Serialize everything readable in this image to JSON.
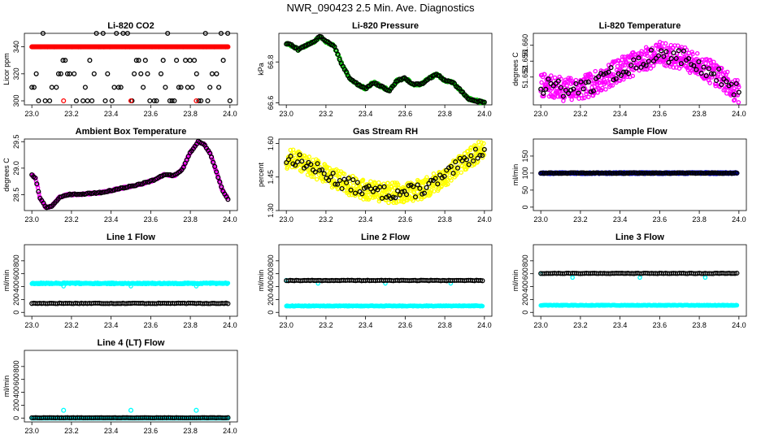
{
  "page": {
    "title": "NWR_090423  2.5 Min. Ave. Diagnostics"
  },
  "colors": {
    "black": "#000000",
    "red": "#ff0000",
    "green": "#00c000",
    "magenta": "#ff00ff",
    "yellow": "#ffff00",
    "blue": "#0000ff",
    "cyan": "#00ffff"
  },
  "chart_data": [
    {
      "id": "li820-co2",
      "type": "scatter",
      "title": "Li-820 CO2",
      "xlabel": "",
      "ylabel": "Licor ppm",
      "xlim": [
        23.0,
        24.0
      ],
      "ylim": [
        297,
        350
      ],
      "xticks": [
        "23.0",
        "23.2",
        "23.4",
        "23.6",
        "23.8",
        "24.0"
      ],
      "yticks": [
        "300",
        "320",
        "340"
      ],
      "series": [
        {
          "name": "black",
          "color": "#000000",
          "gen": "co2_black"
        },
        {
          "name": "red",
          "color": "#ff0000",
          "gen": "co2_red"
        }
      ]
    },
    {
      "id": "li820-pressure",
      "type": "scatter",
      "title": "Li-820 Pressure",
      "xlabel": "",
      "ylabel": "kPa",
      "xlim": [
        23.0,
        24.0
      ],
      "ylim": [
        66.59,
        66.94
      ],
      "xticks": [
        "23.0",
        "23.2",
        "23.4",
        "23.6",
        "23.8",
        "24.0"
      ],
      "yticks": [
        "66.6",
        "66.8"
      ],
      "series": [
        {
          "name": "green",
          "color": "#00c000",
          "gen": "pressure_green"
        },
        {
          "name": "black",
          "color": "#000000",
          "gen": "pressure_black"
        }
      ]
    },
    {
      "id": "li820-temperature",
      "type": "scatter",
      "title": "Li-820 Temperature",
      "xlabel": "",
      "ylabel": "degrees C",
      "xlim": [
        23.0,
        24.0
      ],
      "ylim": [
        51.645,
        51.663
      ],
      "xticks": [
        "23.0",
        "23.2",
        "23.4",
        "23.6",
        "23.8",
        "24.0"
      ],
      "yticks": [
        "51.652",
        "51.656",
        "51.660"
      ],
      "series": [
        {
          "name": "magenta",
          "color": "#ff00ff",
          "gen": "temp_magenta"
        },
        {
          "name": "black",
          "color": "#000000",
          "gen": "temp_black"
        }
      ]
    },
    {
      "id": "ambient-box-temperature",
      "type": "scatter",
      "title": "Ambient Box Temperature",
      "xlabel": "",
      "ylabel": "degrees C",
      "xlim": [
        23.0,
        24.0
      ],
      "ylim": [
        28.2,
        29.55
      ],
      "xticks": [
        "23.0",
        "23.2",
        "23.4",
        "23.6",
        "23.8",
        "24.0"
      ],
      "yticks": [
        "28.5",
        "29.0",
        "29.5"
      ],
      "series": [
        {
          "name": "magenta",
          "color": "#ff00ff",
          "gen": "amb_magenta"
        },
        {
          "name": "black",
          "color": "#000000",
          "gen": "amb_black"
        }
      ]
    },
    {
      "id": "gas-stream-rh",
      "type": "scatter",
      "title": "Gas Stream RH",
      "xlabel": "",
      "ylabel": "percent",
      "xlim": [
        23.0,
        24.0
      ],
      "ylim": [
        1.3,
        1.62
      ],
      "xticks": [
        "23.0",
        "23.2",
        "23.4",
        "23.6",
        "23.8",
        "24.0"
      ],
      "yticks": [
        "1.30",
        "1.45",
        "1.60"
      ],
      "series": [
        {
          "name": "yellow",
          "color": "#ffff00",
          "gen": "rh_yellow"
        },
        {
          "name": "black",
          "color": "#000000",
          "gen": "rh_black"
        }
      ]
    },
    {
      "id": "sample-flow",
      "type": "scatter",
      "title": "Sample Flow",
      "xlabel": "",
      "ylabel": "ml/min",
      "xlim": [
        23.0,
        24.0
      ],
      "ylim": [
        -10,
        200
      ],
      "xticks": [
        "23.0",
        "23.2",
        "23.4",
        "23.6",
        "23.8",
        "24.0"
      ],
      "yticks": [
        "0",
        "50",
        "100",
        "150"
      ],
      "series": [
        {
          "name": "blue",
          "color": "#0000ff",
          "gen": "sample_blue"
        },
        {
          "name": "black",
          "color": "#000000",
          "gen": "sample_black"
        }
      ]
    },
    {
      "id": "line-1-flow",
      "type": "scatter",
      "title": "Line 1 Flow",
      "xlabel": "",
      "ylabel": "ml/min",
      "xlim": [
        23.0,
        24.0
      ],
      "ylim": [
        -60,
        1050
      ],
      "xticks": [
        "23.0",
        "23.2",
        "23.4",
        "23.6",
        "23.8",
        "24.0"
      ],
      "yticks": [
        "0",
        "200",
        "400",
        "600",
        "800"
      ],
      "series": [
        {
          "name": "cyan",
          "color": "#00ffff",
          "gen": "l1_cyan"
        },
        {
          "name": "black",
          "color": "#000000",
          "gen": "l1_black"
        }
      ]
    },
    {
      "id": "line-2-flow",
      "type": "scatter",
      "title": "Line 2 Flow",
      "xlabel": "",
      "ylabel": "ml/min",
      "xlim": [
        23.0,
        24.0
      ],
      "ylim": [
        -60,
        1050
      ],
      "xticks": [
        "23.0",
        "23.2",
        "23.4",
        "23.6",
        "23.8",
        "24.0"
      ],
      "yticks": [
        "0",
        "200",
        "400",
        "600",
        "800"
      ],
      "series": [
        {
          "name": "cyan",
          "color": "#00ffff",
          "gen": "l2_cyan"
        },
        {
          "name": "black",
          "color": "#000000",
          "gen": "l2_black"
        }
      ]
    },
    {
      "id": "line-3-flow",
      "type": "scatter",
      "title": "Line 3 Flow",
      "xlabel": "",
      "ylabel": "ml/min",
      "xlim": [
        23.0,
        24.0
      ],
      "ylim": [
        -60,
        1050
      ],
      "xticks": [
        "23.0",
        "23.2",
        "23.4",
        "23.6",
        "23.8",
        "24.0"
      ],
      "yticks": [
        "0",
        "200",
        "400",
        "600",
        "800"
      ],
      "series": [
        {
          "name": "cyan",
          "color": "#00ffff",
          "gen": "l3_cyan"
        },
        {
          "name": "black",
          "color": "#000000",
          "gen": "l3_black"
        }
      ]
    },
    {
      "id": "line-4-lt-flow",
      "type": "scatter",
      "title": "Line 4 (LT) Flow",
      "xlabel": "",
      "ylabel": "ml/min",
      "xlim": [
        23.0,
        24.0
      ],
      "ylim": [
        -60,
        1050
      ],
      "xticks": [
        "23.0",
        "23.2",
        "23.4",
        "23.6",
        "23.8",
        "24.0"
      ],
      "yticks": [
        "0",
        "200",
        "400",
        "600",
        "800"
      ],
      "series": [
        {
          "name": "cyan",
          "color": "#00ffff",
          "gen": "l4_cyan"
        },
        {
          "name": "black",
          "color": "#000000",
          "gen": "l4_black"
        }
      ]
    }
  ]
}
